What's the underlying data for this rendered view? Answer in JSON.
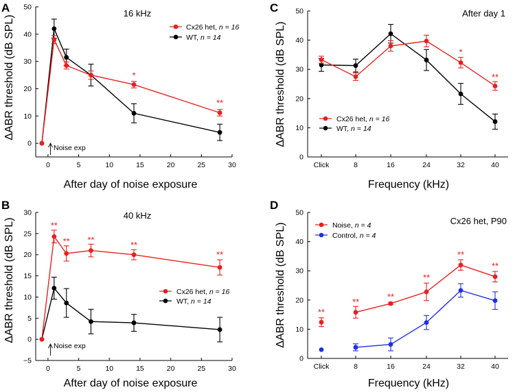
{
  "figure": {
    "colors": {
      "red": "#e8201f",
      "black": "#000000",
      "blue": "#1f2fe6"
    }
  },
  "chart_data": [
    {
      "panel": "A",
      "type": "line",
      "title": "16 kHz",
      "xlabel": "After day of noise exposure",
      "ylabel": "ΔABR threshold (dB SPL)",
      "xlim": [
        -2,
        30
      ],
      "ylim": [
        -5,
        50
      ],
      "xticks": [
        0,
        5,
        10,
        15,
        20,
        25,
        30
      ],
      "xtick_labels": [
        "0",
        "5",
        "10",
        "15",
        "20",
        "25",
        "30"
      ],
      "yticks": [
        0,
        10,
        20,
        30,
        40,
        50
      ],
      "ytick_labels": [
        "0",
        "10",
        "20",
        "30",
        "40",
        "50"
      ],
      "legend": "top-right",
      "annotation": "Noise exp",
      "series": [
        {
          "name": "Cx26 het",
          "n_label": "n = 16",
          "color": "#e8201f",
          "x": [
            -1,
            1,
            3,
            7,
            14,
            28
          ],
          "values": [
            0,
            38,
            28.5,
            25,
            21.5,
            11.2
          ],
          "err": [
            0,
            1.5,
            1.3,
            1.5,
            1.2,
            1.2
          ]
        },
        {
          "name": "WT",
          "n_label": "n = 14",
          "color": "#000000",
          "x": [
            -1,
            1,
            3,
            7,
            14,
            28
          ],
          "values": [
            0,
            42,
            31.5,
            25,
            11,
            4
          ],
          "err": [
            0,
            3.5,
            3,
            4,
            3.5,
            3
          ]
        }
      ],
      "sig": [
        {
          "x": 14,
          "y": 25,
          "label": "*"
        },
        {
          "x": 28,
          "y": 15,
          "label": "**"
        }
      ]
    },
    {
      "panel": "B",
      "type": "line",
      "title": "40 kHz",
      "xlabel": "After day of noise exposure",
      "ylabel": "ΔABR threshold (dB SPL)",
      "xlim": [
        -2,
        30
      ],
      "ylim": [
        -5,
        30
      ],
      "xticks": [
        0,
        5,
        10,
        15,
        20,
        25,
        30
      ],
      "xtick_labels": [
        "0",
        "5",
        "10",
        "15",
        "20",
        "25",
        "30"
      ],
      "yticks": [
        -5,
        0,
        5,
        10,
        15,
        20,
        25,
        30
      ],
      "ytick_labels": [
        "−5",
        "0",
        "5",
        "10",
        "15",
        "20",
        "25",
        "30"
      ],
      "legend": "middle-right",
      "annotation": "Noise exp",
      "series": [
        {
          "name": "Cx26 het",
          "n_label": "n = 16",
          "color": "#e8201f",
          "x": [
            -1,
            1,
            3,
            7,
            14,
            28
          ],
          "values": [
            0,
            24.3,
            20.3,
            21,
            20,
            17
          ],
          "err": [
            0,
            1.5,
            1.8,
            1.5,
            1.2,
            1.8
          ]
        },
        {
          "name": "WT",
          "n_label": "n = 14",
          "color": "#000000",
          "x": [
            -1,
            1,
            3,
            7,
            14,
            28
          ],
          "values": [
            0,
            12.1,
            8.6,
            4.2,
            3.9,
            2.3
          ],
          "err": [
            0,
            2.6,
            3.4,
            2.9,
            2,
            2.9
          ]
        }
      ],
      "sig": [
        {
          "x": 1,
          "y": 27,
          "label": "**"
        },
        {
          "x": 3,
          "y": 23.3,
          "label": "**"
        },
        {
          "x": 7,
          "y": 23.6,
          "label": "**"
        },
        {
          "x": 14,
          "y": 22.4,
          "label": "**"
        },
        {
          "x": 28,
          "y": 20.1,
          "label": "**"
        }
      ]
    },
    {
      "panel": "C",
      "type": "line",
      "title": "After day 1",
      "xlabel": "Frequency (kHz)",
      "ylabel": "ΔABR threshold (dB SPL)",
      "categories": [
        "Click",
        "8",
        "16",
        "24",
        "32",
        "40"
      ],
      "ylim": [
        0,
        50
      ],
      "yticks": [
        0,
        10,
        20,
        30,
        40,
        50
      ],
      "ytick_labels": [
        "0",
        "10",
        "20",
        "30",
        "40",
        "50"
      ],
      "legend": "middle-left",
      "series": [
        {
          "name": "Cx26 het",
          "n_label": "n = 16",
          "color": "#e8201f",
          "values": [
            33.3,
            27.5,
            38,
            39.7,
            32.3,
            24.3
          ],
          "err": [
            1.2,
            1.3,
            1.8,
            2,
            1.8,
            1.5
          ]
        },
        {
          "name": "WT",
          "n_label": "n = 14",
          "color": "#000000",
          "values": [
            31.5,
            31.3,
            42.2,
            33.2,
            21.6,
            12.1
          ],
          "err": [
            2.2,
            2.2,
            3.2,
            3.6,
            3.6,
            2.6
          ]
        }
      ],
      "sig": [
        {
          "cat": 4,
          "y": 36,
          "label": "*"
        },
        {
          "cat": 5,
          "y": 27.5,
          "label": "**"
        }
      ]
    },
    {
      "panel": "D",
      "type": "line",
      "title": "Cx26 het, P90",
      "xlabel": "Frequency (kHz)",
      "ylabel": "ΔABR threshold (dB SPL)",
      "categories": [
        "Click",
        "8",
        "16",
        "24",
        "32",
        "40"
      ],
      "ylim": [
        0,
        50
      ],
      "yticks": [
        0,
        10,
        20,
        30,
        40,
        50
      ],
      "ytick_labels": [
        "0",
        "10",
        "20",
        "30",
        "40",
        "50"
      ],
      "legend": "top-left",
      "series": [
        {
          "name": "Noise",
          "n_label": "n = 4",
          "color": "#e8201f",
          "values": [
            12.4,
            15.8,
            18.8,
            22.8,
            32,
            28
          ],
          "err": [
            1.5,
            2,
            0.4,
            3,
            1.8,
            1.8
          ]
        },
        {
          "name": "Control",
          "n_label": "n = 4",
          "color": "#1f2fe6",
          "values": [
            3,
            3.8,
            4.8,
            12.3,
            23.3,
            19.8
          ],
          "err": [
            0,
            1.2,
            2.2,
            2.4,
            2.3,
            3
          ]
        }
      ],
      "connect_from": [
        1,
        1
      ],
      "sig": [
        {
          "cat": 0,
          "y": 16,
          "label": "**"
        },
        {
          "cat": 1,
          "y": 19.5,
          "label": "**"
        },
        {
          "cat": 2,
          "y": 21.2,
          "label": "**"
        },
        {
          "cat": 3,
          "y": 27.8,
          "label": "**"
        },
        {
          "cat": 4,
          "y": 35.7,
          "label": "**"
        },
        {
          "cat": 5,
          "y": 31.8,
          "label": "**"
        }
      ]
    }
  ]
}
